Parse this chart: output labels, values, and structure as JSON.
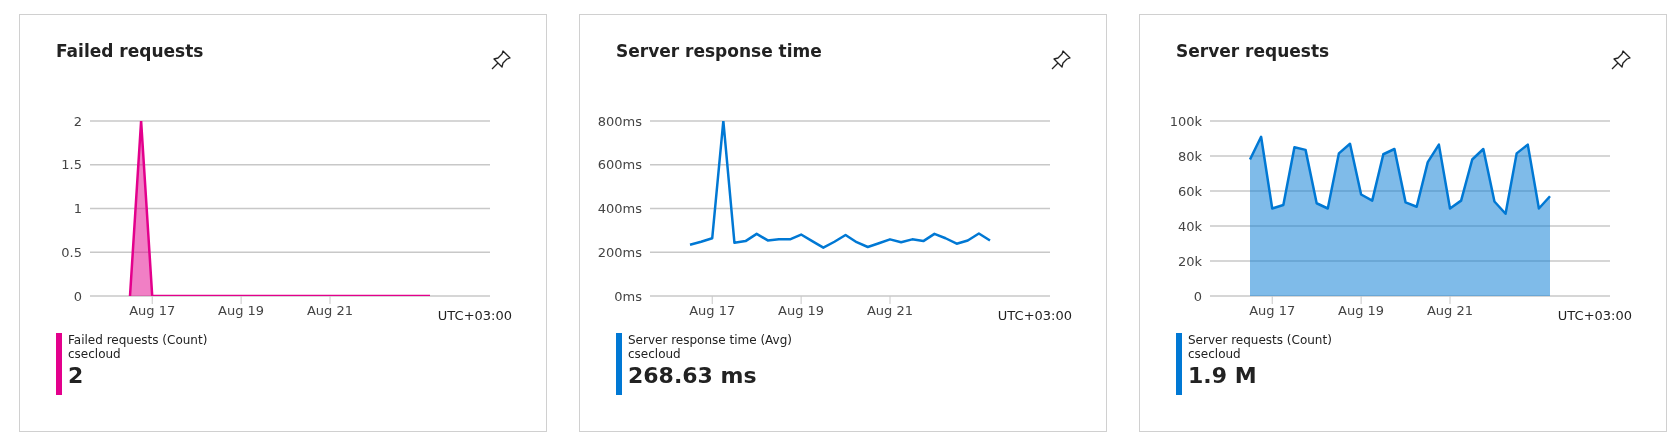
{
  "chart_data": [
    {
      "type": "area",
      "title": "Failed requests",
      "categories": [
        null,
        null,
        "Aug 17",
        null,
        null,
        null,
        null,
        null,
        null,
        null,
        "Aug 19",
        null,
        null,
        null,
        null,
        null,
        null,
        null,
        "Aug 21",
        null,
        null,
        null,
        null,
        null,
        null,
        null,
        null,
        null
      ],
      "series": [
        {
          "name": "Failed requests (Count)",
          "color": "#e3008c",
          "values": [
            0,
            2,
            0,
            0,
            0,
            0,
            0,
            0,
            0,
            0,
            0,
            0,
            0,
            0,
            0,
            0,
            0,
            0,
            0,
            0,
            0,
            0,
            0,
            0,
            0,
            0,
            0,
            0
          ]
        }
      ],
      "xlabel": "UTC+03:00",
      "ylim": [
        0,
        2
      ],
      "yticks": [
        0,
        0.5,
        1,
        1.5,
        2
      ],
      "grid": "y",
      "legend": "bottom",
      "annotations": [
        "csecloud",
        "2"
      ]
    },
    {
      "type": "line",
      "title": "Server response time",
      "categories": [
        null,
        null,
        "Aug 17",
        null,
        null,
        null,
        null,
        null,
        null,
        null,
        "Aug 19",
        null,
        null,
        null,
        null,
        null,
        null,
        null,
        "Aug 21",
        null,
        null,
        null,
        null,
        null,
        null,
        null,
        null,
        null
      ],
      "series": [
        {
          "name": "Server response time (Avg)",
          "color": "#0078d4",
          "values": [
            234,
            248,
            264,
            800,
            243,
            251,
            284,
            254,
            259,
            259,
            281,
            251,
            221,
            248,
            279,
            246,
            224,
            241,
            259,
            246,
            259,
            251,
            284,
            264,
            239,
            254,
            286,
            254
          ]
        }
      ],
      "xlabel": "UTC+03:00",
      "ylim": [
        0,
        800
      ],
      "yticks": [
        {
          "value": 0,
          "label": "0ms"
        },
        {
          "value": 200,
          "label": "200ms"
        },
        {
          "value": 400,
          "label": "400ms"
        },
        {
          "value": 600,
          "label": "600ms"
        },
        {
          "value": 800,
          "label": "800ms"
        }
      ],
      "grid": "y",
      "legend": "bottom",
      "annotations": [
        "csecloud",
        "268.63 ms"
      ]
    },
    {
      "type": "area",
      "title": "Server requests",
      "categories": [
        null,
        null,
        "Aug 17",
        null,
        null,
        null,
        null,
        null,
        null,
        null,
        "Aug 19",
        null,
        null,
        null,
        null,
        null,
        null,
        null,
        "Aug 21",
        null,
        null,
        null,
        null,
        null,
        null,
        null,
        null,
        null
      ],
      "series": [
        {
          "name": "Server requests (Count)",
          "color": "#0078d4",
          "values": [
            78000,
            91000,
            50000,
            52000,
            85000,
            83500,
            53000,
            50000,
            81500,
            87000,
            58000,
            54500,
            81000,
            84000,
            53500,
            51000,
            76500,
            86500,
            50000,
            54500,
            78000,
            84000,
            54000,
            47000,
            81500,
            86500,
            50000,
            57000
          ]
        }
      ],
      "xlabel": "UTC+03:00",
      "ylim": [
        0,
        100000
      ],
      "yticks": [
        {
          "value": 0,
          "label": "0"
        },
        {
          "value": 20000,
          "label": "20k"
        },
        {
          "value": 40000,
          "label": "40k"
        },
        {
          "value": 60000,
          "label": "60k"
        },
        {
          "value": 80000,
          "label": "80k"
        },
        {
          "value": 100000,
          "label": "100k"
        }
      ],
      "grid": "y",
      "legend": "bottom",
      "annotations": [
        "csecloud",
        "1.9 M"
      ]
    }
  ]
}
